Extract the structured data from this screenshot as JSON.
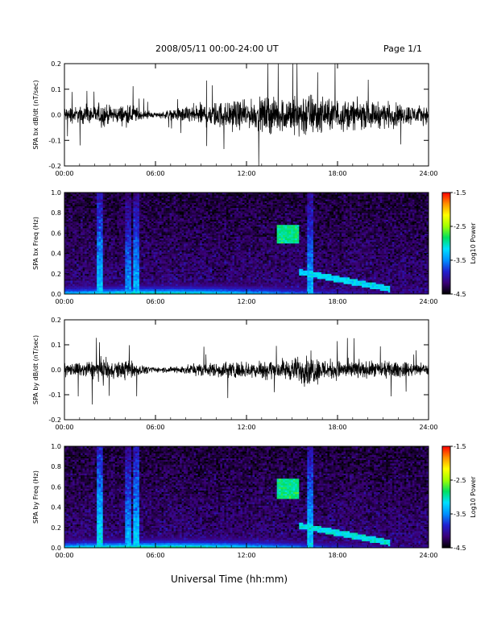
{
  "header": {
    "title": "2008/05/11  00:00-24:00 UT",
    "page": "Page 1/1"
  },
  "footer": {
    "xlabel": "Universal Time (hh:mm)"
  },
  "colorbar": {
    "ticks": [
      "-1.5",
      "-2.5",
      "-3.5",
      "-4.5"
    ],
    "label": "Log10 Power",
    "range": [
      -4.5,
      -1.5
    ],
    "colormap": [
      "#000000",
      "#3a0078",
      "#2020d0",
      "#0090ff",
      "#00e0ff",
      "#00e060",
      "#a0ff00",
      "#ffff00",
      "#ff9000",
      "#ff0000"
    ]
  },
  "chart_data": [
    {
      "type": "line",
      "ylabel": "SPA bx dB/dt (nT/sec)",
      "xlim": [
        0,
        24
      ],
      "ylim": [
        -0.2,
        0.2
      ],
      "x_ticks": [
        "00:00",
        "06:00",
        "12:00",
        "18:00",
        "24:00"
      ],
      "y_ticks": [
        "0.2",
        "0.1",
        "0.0",
        "-0.1",
        "-0.2"
      ],
      "series": [
        {
          "x": [
            0,
            1,
            2,
            2.5,
            3,
            4,
            4.5,
            5,
            6,
            7,
            8,
            9,
            10,
            11,
            12,
            13,
            13.5,
            14,
            15,
            16,
            16.5,
            17,
            18,
            19,
            20,
            21,
            22,
            23,
            24
          ],
          "amplitude": [
            0.05,
            0.05,
            0.06,
            0.08,
            0.05,
            0.06,
            0.07,
            0.03,
            0.015,
            0.03,
            0.05,
            0.07,
            0.08,
            0.09,
            0.08,
            0.1,
            0.12,
            0.1,
            0.12,
            0.15,
            0.12,
            0.1,
            0.1,
            0.09,
            0.08,
            0.08,
            0.07,
            0.06,
            0.05
          ]
        }
      ]
    },
    {
      "type": "heatmap",
      "ylabel": "SPA bx Freq (Hz)",
      "xlim": [
        0,
        24
      ],
      "ylim": [
        0.0,
        1.0
      ],
      "x_ticks": [
        "00:00",
        "06:00",
        "12:00",
        "18:00",
        "24:00"
      ],
      "y_ticks": [
        "1.0",
        "0.8",
        "0.6",
        "0.4",
        "0.2",
        "0.0"
      ],
      "features": [
        {
          "kind": "low_band",
          "level": -2.8
        },
        {
          "kind": "vertical_streak",
          "time": 2.3,
          "level": -3.2
        },
        {
          "kind": "vertical_streak",
          "time": 4.2,
          "level": -3.4
        },
        {
          "kind": "vertical_streak",
          "time": 4.7,
          "level": -3.3
        },
        {
          "kind": "vertical_streak",
          "time": 16.2,
          "level": -3.3
        },
        {
          "kind": "blob",
          "t0": 14.0,
          "t1": 15.5,
          "f0": 0.5,
          "f1": 0.68,
          "level": -2.9
        },
        {
          "kind": "arc",
          "t0": 15.5,
          "t1": 21.5,
          "f0": 0.22,
          "f1": 0.05,
          "level": -3.2
        }
      ]
    },
    {
      "type": "line",
      "ylabel": "SPA by dB/dt (nT/sec)",
      "xlim": [
        0,
        24
      ],
      "ylim": [
        -0.2,
        0.2
      ],
      "x_ticks": [
        "00:00",
        "06:00",
        "12:00",
        "18:00",
        "24:00"
      ],
      "y_ticks": [
        "0.2",
        "0.1",
        "0.0",
        "-0.1",
        "-0.2"
      ],
      "series": [
        {
          "x": [
            0,
            1,
            2,
            2.5,
            3,
            4,
            4.5,
            5,
            6,
            7,
            8,
            9,
            10,
            11,
            12,
            13,
            14,
            15,
            16,
            16.5,
            17,
            18,
            19,
            20,
            21,
            22,
            23,
            24
          ],
          "amplitude": [
            0.04,
            0.05,
            0.06,
            0.08,
            0.05,
            0.06,
            0.06,
            0.03,
            0.015,
            0.02,
            0.03,
            0.04,
            0.05,
            0.05,
            0.05,
            0.06,
            0.06,
            0.07,
            0.1,
            0.09,
            0.07,
            0.06,
            0.06,
            0.05,
            0.05,
            0.05,
            0.04,
            0.04
          ]
        }
      ]
    },
    {
      "type": "heatmap",
      "ylabel": "SPA by Freq (Hz)",
      "xlim": [
        0,
        24
      ],
      "ylim": [
        0.0,
        1.0
      ],
      "x_ticks": [
        "00:00",
        "06:00",
        "12:00",
        "18:00",
        "24:00"
      ],
      "y_ticks": [
        "1.0",
        "0.8",
        "0.6",
        "0.4",
        "0.2",
        "0.0"
      ],
      "features": [
        {
          "kind": "low_band",
          "level": -2.7
        },
        {
          "kind": "vertical_streak",
          "time": 2.3,
          "level": -3.1
        },
        {
          "kind": "vertical_streak",
          "time": 4.2,
          "level": -3.3
        },
        {
          "kind": "vertical_streak",
          "time": 4.7,
          "level": -3.2
        },
        {
          "kind": "vertical_streak",
          "time": 16.2,
          "level": -3.2
        },
        {
          "kind": "blob",
          "t0": 14.0,
          "t1": 15.5,
          "f0": 0.48,
          "f1": 0.68,
          "level": -2.9
        },
        {
          "kind": "arc",
          "t0": 15.5,
          "t1": 21.5,
          "f0": 0.22,
          "f1": 0.05,
          "level": -3.1
        }
      ]
    }
  ]
}
